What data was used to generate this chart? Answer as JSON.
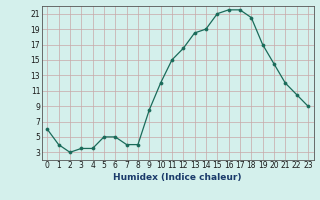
{
  "x": [
    0,
    1,
    2,
    3,
    4,
    5,
    6,
    7,
    8,
    9,
    10,
    11,
    12,
    13,
    14,
    15,
    16,
    17,
    18,
    19,
    20,
    21,
    22,
    23
  ],
  "y": [
    6,
    4,
    3,
    3.5,
    3.5,
    5,
    5,
    4,
    4,
    8.5,
    12,
    15,
    16.5,
    18.5,
    19,
    21,
    21.5,
    21.5,
    20.5,
    17,
    14.5,
    12,
    10.5,
    9
  ],
  "line_color": "#1a6b5a",
  "marker_color": "#1a6b5a",
  "bg_color": "#d4f0ec",
  "grid_color": "#c8a8a8",
  "xlabel": "Humidex (Indice chaleur)",
  "xlim": [
    -0.5,
    23.5
  ],
  "ylim": [
    2,
    22
  ],
  "yticks": [
    3,
    5,
    7,
    9,
    11,
    13,
    15,
    17,
    19,
    21
  ],
  "xticks": [
    0,
    1,
    2,
    3,
    4,
    5,
    6,
    7,
    8,
    9,
    10,
    11,
    12,
    13,
    14,
    15,
    16,
    17,
    18,
    19,
    20,
    21,
    22,
    23
  ],
  "xtick_labels": [
    "0",
    "1",
    "2",
    "3",
    "4",
    "5",
    "6",
    "7",
    "8",
    "9",
    "10",
    "11",
    "12",
    "13",
    "14",
    "15",
    "16",
    "17",
    "18",
    "19",
    "20",
    "21",
    "22",
    "23"
  ],
  "ytick_labels": [
    "3",
    "5",
    "7",
    "9",
    "11",
    "13",
    "15",
    "17",
    "19",
    "21"
  ],
  "xlabel_color": "#1a3a6a",
  "xlabel_fontsize": 6.5,
  "tick_fontsize": 5.5,
  "linewidth": 0.9,
  "markersize": 2.2
}
